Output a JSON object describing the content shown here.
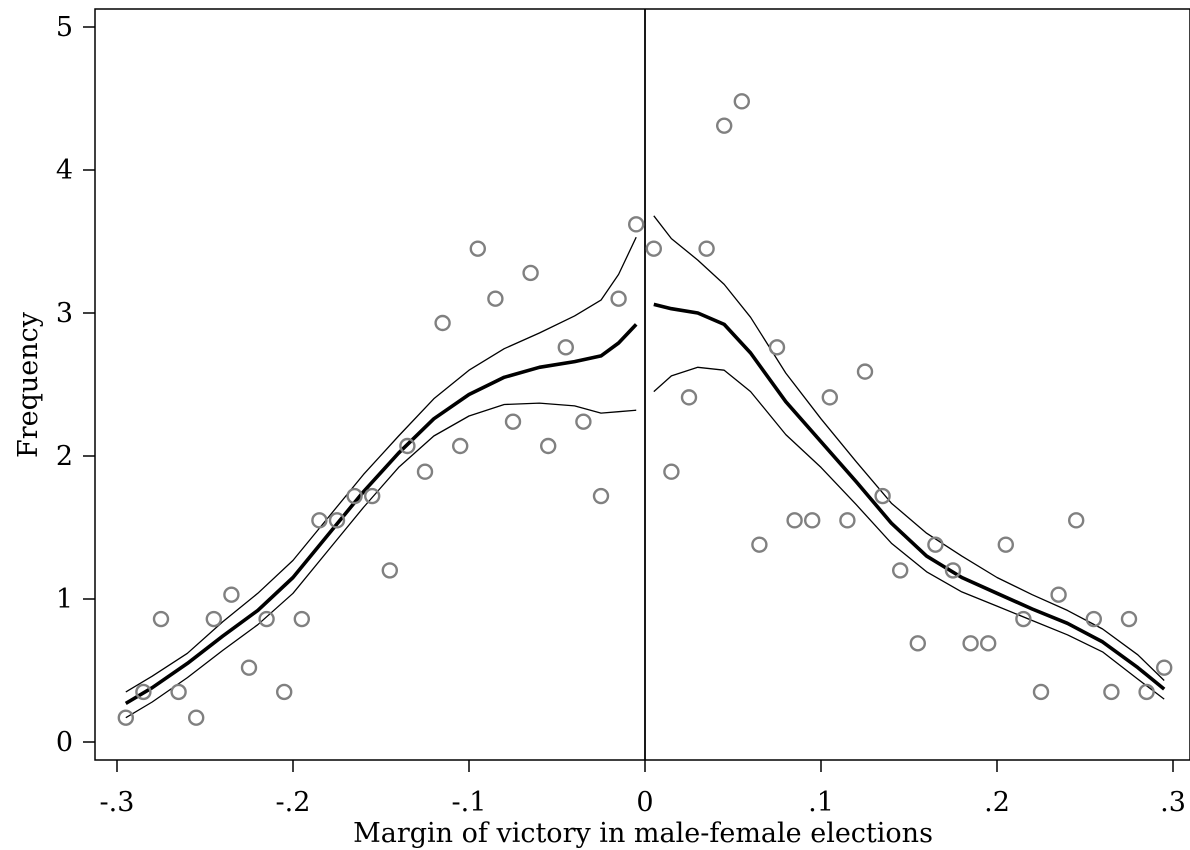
{
  "chart_data": {
    "type": "scatter",
    "title": "",
    "xlabel": "Margin of victory in male-female elections",
    "ylabel": "Frequency",
    "xlim": [
      -0.3,
      0.3
    ],
    "ylim": [
      0,
      5
    ],
    "x_ticks": [
      -0.3,
      -0.2,
      -0.1,
      0,
      0.1,
      0.2,
      0.3
    ],
    "x_tick_labels": [
      "-.3",
      "-.2",
      "-.1",
      "0",
      ".1",
      ".2",
      ".3"
    ],
    "y_ticks": [
      0,
      1,
      2,
      3,
      4,
      5
    ],
    "y_tick_labels": [
      "0",
      "1",
      "2",
      "3",
      "4",
      "5"
    ],
    "cutoff_x": 0,
    "grid": false,
    "legend": "none",
    "colors": {
      "points": "#808080",
      "fit": "#000000",
      "ci": "#000000"
    },
    "series": [
      {
        "kind": "points",
        "x": [
          -0.295,
          -0.285,
          -0.275,
          -0.265,
          -0.255,
          -0.245,
          -0.235,
          -0.225,
          -0.215,
          -0.205,
          -0.195,
          -0.185,
          -0.175,
          -0.165,
          -0.155,
          -0.145,
          -0.135,
          -0.125,
          -0.115,
          -0.105,
          -0.095,
          -0.085,
          -0.075,
          -0.065,
          -0.055,
          -0.045,
          -0.035,
          -0.025,
          -0.015,
          -0.005,
          0.005,
          0.015,
          0.025,
          0.035,
          0.045,
          0.055,
          0.065,
          0.075,
          0.085,
          0.095,
          0.105,
          0.115,
          0.125,
          0.135,
          0.145,
          0.155,
          0.165,
          0.175,
          0.185,
          0.195,
          0.205,
          0.215,
          0.225,
          0.235,
          0.245,
          0.255,
          0.265,
          0.275,
          0.285,
          0.295
        ],
        "y": [
          0.17,
          0.35,
          0.86,
          0.35,
          0.17,
          0.86,
          1.03,
          0.52,
          0.86,
          0.35,
          0.86,
          1.55,
          1.55,
          1.72,
          1.72,
          1.2,
          2.07,
          1.89,
          2.93,
          2.07,
          3.45,
          3.1,
          2.24,
          3.28,
          2.07,
          2.76,
          2.24,
          1.72,
          3.1,
          3.62,
          3.45,
          1.89,
          2.41,
          3.45,
          4.31,
          4.48,
          1.38,
          2.76,
          1.55,
          1.55,
          2.41,
          1.55,
          2.59,
          1.72,
          1.2,
          0.69,
          1.38,
          1.2,
          0.69,
          0.69,
          1.38,
          0.86,
          0.35,
          1.03,
          1.55,
          0.86,
          0.35,
          0.86,
          0.35,
          0.52
        ]
      },
      {
        "kind": "fit",
        "x": [
          -0.295,
          -0.28,
          -0.26,
          -0.24,
          -0.22,
          -0.2,
          -0.18,
          -0.16,
          -0.14,
          -0.12,
          -0.1,
          -0.08,
          -0.06,
          -0.04,
          -0.025,
          -0.015,
          -0.005
        ],
        "y": [
          0.27,
          0.38,
          0.55,
          0.74,
          0.92,
          1.15,
          1.45,
          1.75,
          2.02,
          2.26,
          2.43,
          2.55,
          2.62,
          2.66,
          2.7,
          2.79,
          2.92
        ]
      },
      {
        "kind": "ci_upper",
        "x": [
          -0.295,
          -0.28,
          -0.26,
          -0.24,
          -0.22,
          -0.2,
          -0.18,
          -0.16,
          -0.14,
          -0.12,
          -0.1,
          -0.08,
          -0.06,
          -0.04,
          -0.025,
          -0.015,
          -0.005
        ],
        "y": [
          0.35,
          0.46,
          0.62,
          0.84,
          1.04,
          1.27,
          1.57,
          1.87,
          2.14,
          2.4,
          2.6,
          2.75,
          2.86,
          2.98,
          3.09,
          3.27,
          3.53
        ]
      },
      {
        "kind": "ci_lower",
        "x": [
          -0.295,
          -0.28,
          -0.26,
          -0.24,
          -0.22,
          -0.2,
          -0.18,
          -0.16,
          -0.14,
          -0.12,
          -0.1,
          -0.08,
          -0.06,
          -0.04,
          -0.025,
          -0.015,
          -0.005
        ],
        "y": [
          0.17,
          0.28,
          0.45,
          0.64,
          0.82,
          1.04,
          1.34,
          1.64,
          1.92,
          2.14,
          2.28,
          2.36,
          2.37,
          2.35,
          2.3,
          2.31,
          2.32
        ]
      },
      {
        "kind": "fit",
        "x": [
          0.005,
          0.015,
          0.03,
          0.045,
          0.06,
          0.08,
          0.1,
          0.12,
          0.14,
          0.16,
          0.18,
          0.2,
          0.22,
          0.24,
          0.26,
          0.28,
          0.295
        ],
        "y": [
          3.06,
          3.03,
          3.0,
          2.92,
          2.72,
          2.38,
          2.1,
          1.82,
          1.53,
          1.3,
          1.15,
          1.04,
          0.93,
          0.83,
          0.7,
          0.52,
          0.37
        ]
      },
      {
        "kind": "ci_upper",
        "x": [
          0.005,
          0.015,
          0.03,
          0.045,
          0.06,
          0.08,
          0.1,
          0.12,
          0.14,
          0.16,
          0.18,
          0.2,
          0.22,
          0.24,
          0.26,
          0.28,
          0.295
        ],
        "y": [
          3.68,
          3.52,
          3.37,
          3.2,
          2.97,
          2.58,
          2.26,
          1.96,
          1.67,
          1.46,
          1.3,
          1.15,
          1.03,
          0.92,
          0.79,
          0.61,
          0.43
        ]
      },
      {
        "kind": "ci_lower",
        "x": [
          0.005,
          0.015,
          0.03,
          0.045,
          0.06,
          0.08,
          0.1,
          0.12,
          0.14,
          0.16,
          0.18,
          0.2,
          0.22,
          0.24,
          0.26,
          0.28,
          0.295
        ],
        "y": [
          2.45,
          2.56,
          2.62,
          2.6,
          2.45,
          2.15,
          1.92,
          1.66,
          1.39,
          1.19,
          1.05,
          0.95,
          0.85,
          0.75,
          0.63,
          0.44,
          0.3
        ]
      }
    ]
  }
}
